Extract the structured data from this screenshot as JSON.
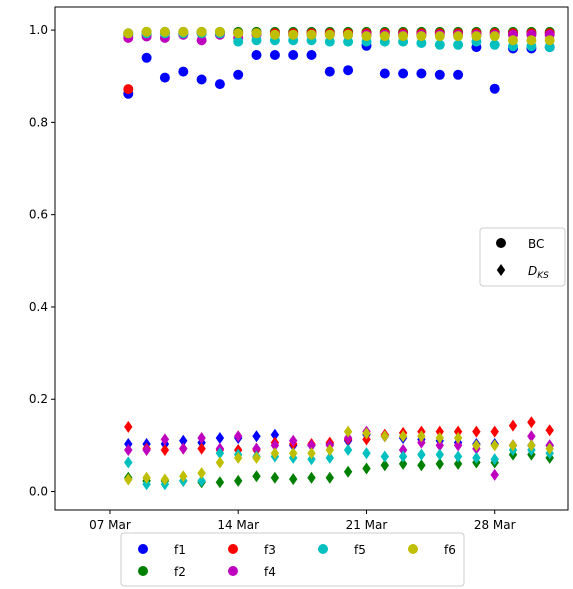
{
  "chart_data": {
    "type": "scatter",
    "x_axis": {
      "kind": "date",
      "range": [
        "2020-03-04",
        "2020-04-01"
      ],
      "ticks": [
        {
          "date": "2020-03-07",
          "label": "07 Mar"
        },
        {
          "date": "2020-03-14",
          "label": "14 Mar"
        },
        {
          "date": "2020-03-21",
          "label": "21 Mar"
        },
        {
          "date": "2020-03-28",
          "label": "28 Mar"
        }
      ]
    },
    "y_axis": {
      "range": [
        -0.04,
        1.05
      ],
      "ticks": [
        {
          "value": 0.0,
          "label": "0.0"
        },
        {
          "value": 0.2,
          "label": "0.2"
        },
        {
          "value": 0.4,
          "label": "0.4"
        },
        {
          "value": 0.6,
          "label": "0.6"
        },
        {
          "value": 0.8,
          "label": "0.8"
        },
        {
          "value": 1.0,
          "label": "1.0"
        }
      ]
    },
    "grid": false,
    "dates": [
      "2020-03-08",
      "2020-03-09",
      "2020-03-10",
      "2020-03-11",
      "2020-03-12",
      "2020-03-13",
      "2020-03-14",
      "2020-03-15",
      "2020-03-16",
      "2020-03-17",
      "2020-03-18",
      "2020-03-19",
      "2020-03-20",
      "2020-03-21",
      "2020-03-22",
      "2020-03-23",
      "2020-03-24",
      "2020-03-25",
      "2020-03-26",
      "2020-03-27",
      "2020-03-28",
      "2020-03-29",
      "2020-03-30",
      "2020-03-31"
    ],
    "series": [
      {
        "name": "f1",
        "color": "#0000ff",
        "metric": "BC",
        "values": [
          0.862,
          0.94,
          0.897,
          0.91,
          0.893,
          0.883,
          0.903,
          0.946,
          0.946,
          0.946,
          0.946,
          0.91,
          0.913,
          0.966,
          0.906,
          0.906,
          0.906,
          0.903,
          0.903,
          0.963,
          0.873,
          0.96,
          0.96,
          0.963
        ]
      },
      {
        "name": "f2",
        "color": "#008000",
        "metric": "BC",
        "values": [
          0.99,
          0.996,
          0.996,
          0.996,
          0.996,
          0.996,
          0.996,
          0.996,
          0.996,
          0.996,
          0.996,
          0.996,
          0.996,
          0.996,
          0.996,
          0.996,
          0.996,
          0.996,
          0.996,
          0.996,
          0.996,
          0.996,
          0.996,
          0.996
        ]
      },
      {
        "name": "f3",
        "color": "#ff0000",
        "metric": "BC",
        "values": [
          0.872,
          0.99,
          0.993,
          0.993,
          0.993,
          0.993,
          0.993,
          0.993,
          0.993,
          0.993,
          0.993,
          0.993,
          0.993,
          0.993,
          0.993,
          0.993,
          0.993,
          0.993,
          0.993,
          0.993,
          0.993,
          0.993,
          0.993,
          0.993
        ]
      },
      {
        "name": "f4",
        "color": "#bf00bf",
        "metric": "BC",
        "values": [
          0.983,
          0.986,
          0.983,
          0.99,
          0.978,
          0.99,
          0.983,
          0.99,
          0.99,
          0.99,
          0.99,
          0.99,
          0.99,
          0.99,
          0.99,
          0.99,
          0.99,
          0.99,
          0.99,
          0.99,
          0.99,
          0.99,
          0.99,
          0.99
        ]
      },
      {
        "name": "f5",
        "color": "#00bfbf",
        "metric": "BC",
        "values": [
          0.993,
          0.993,
          0.993,
          0.993,
          0.993,
          0.993,
          0.975,
          0.978,
          0.978,
          0.978,
          0.978,
          0.975,
          0.975,
          0.975,
          0.975,
          0.975,
          0.972,
          0.968,
          0.968,
          0.975,
          0.968,
          0.965,
          0.965,
          0.963
        ]
      },
      {
        "name": "f6",
        "color": "#bfbf00",
        "metric": "BC",
        "values": [
          0.993,
          0.996,
          0.996,
          0.996,
          0.996,
          0.996,
          0.993,
          0.993,
          0.99,
          0.99,
          0.99,
          0.99,
          0.99,
          0.987,
          0.987,
          0.987,
          0.987,
          0.987,
          0.987,
          0.987,
          0.987,
          0.978,
          0.978,
          0.978
        ]
      },
      {
        "name": "f1",
        "color": "#0000ff",
        "metric": "DKS",
        "values": [
          0.103,
          0.103,
          0.103,
          0.11,
          0.106,
          0.116,
          0.116,
          0.12,
          0.123,
          0.1,
          0.1,
          0.103,
          0.11,
          0.123,
          0.12,
          0.116,
          0.113,
          0.11,
          0.106,
          0.103,
          0.103,
          0.1,
          0.1,
          0.1
        ]
      },
      {
        "name": "f2",
        "color": "#008000",
        "metric": "DKS",
        "values": [
          0.03,
          0.023,
          0.023,
          0.023,
          0.02,
          0.02,
          0.023,
          0.033,
          0.03,
          0.027,
          0.03,
          0.03,
          0.043,
          0.05,
          0.057,
          0.06,
          0.057,
          0.06,
          0.06,
          0.063,
          0.063,
          0.08,
          0.08,
          0.073
        ]
      },
      {
        "name": "f3",
        "color": "#ff0000",
        "metric": "DKS",
        "values": [
          0.14,
          0.093,
          0.09,
          0.093,
          0.093,
          0.09,
          0.09,
          0.09,
          0.106,
          0.103,
          0.103,
          0.106,
          0.113,
          0.113,
          0.123,
          0.127,
          0.13,
          0.13,
          0.13,
          0.13,
          0.13,
          0.143,
          0.15,
          0.133
        ]
      },
      {
        "name": "f4",
        "color": "#bf00bf",
        "metric": "DKS",
        "values": [
          0.09,
          0.09,
          0.113,
          0.093,
          0.116,
          0.093,
          0.12,
          0.093,
          0.1,
          0.11,
          0.1,
          0.1,
          0.116,
          0.13,
          0.12,
          0.09,
          0.106,
          0.1,
          0.1,
          0.093,
          0.036,
          0.1,
          0.12,
          0.1
        ]
      },
      {
        "name": "f5",
        "color": "#00bfbf",
        "metric": "DKS",
        "values": [
          0.063,
          0.016,
          0.016,
          0.023,
          0.023,
          0.083,
          0.08,
          0.076,
          0.076,
          0.073,
          0.07,
          0.073,
          0.09,
          0.083,
          0.076,
          0.076,
          0.08,
          0.08,
          0.076,
          0.073,
          0.07,
          0.09,
          0.09,
          0.083
        ]
      },
      {
        "name": "f6",
        "color": "#bfbf00",
        "metric": "DKS",
        "values": [
          0.026,
          0.03,
          0.026,
          0.033,
          0.04,
          0.063,
          0.073,
          0.073,
          0.083,
          0.083,
          0.083,
          0.09,
          0.13,
          0.126,
          0.12,
          0.12,
          0.12,
          0.116,
          0.116,
          0.1,
          0.1,
          0.1,
          0.1,
          0.093
        ]
      }
    ],
    "marker_legend": {
      "placement": "center-right",
      "entries": [
        {
          "marker": "circle",
          "label_text": "BC",
          "label_sub": ""
        },
        {
          "marker": "diamond",
          "label_text": "D",
          "label_sub": "KS"
        }
      ]
    },
    "color_legend": {
      "placement": "bottom-center",
      "entries": [
        "f1",
        "f3",
        "f5",
        "f6",
        "f2",
        "f4"
      ],
      "colors": [
        "#0000ff",
        "#ff0000",
        "#00bfbf",
        "#bfbf00",
        "#008000",
        "#bf00bf"
      ]
    }
  }
}
